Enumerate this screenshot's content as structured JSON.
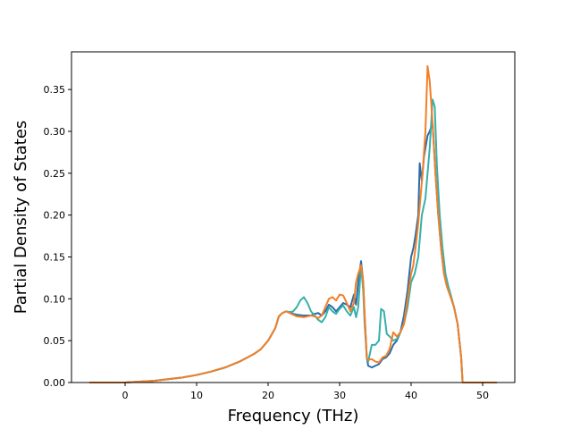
{
  "chart_data": {
    "type": "line",
    "title": "",
    "xlabel": "Frequency (THz)",
    "ylabel": "Partial Density of States",
    "xlim": [
      -7.5,
      54.5
    ],
    "ylim": [
      0.0,
      0.395
    ],
    "xticks": [
      0,
      10,
      20,
      30,
      40,
      50
    ],
    "xtick_labels": [
      "0",
      "10",
      "20",
      "30",
      "40",
      "50"
    ],
    "yticks": [
      0.0,
      0.05,
      0.1,
      0.15,
      0.2,
      0.25,
      0.3,
      0.35
    ],
    "ytick_labels": [
      "0.00",
      "0.05",
      "0.10",
      "0.15",
      "0.20",
      "0.25",
      "0.30",
      "0.35"
    ],
    "grid": false,
    "legend": "none",
    "series": [
      {
        "color": "#2b6ca8",
        "points": [
          [
            -5,
            0
          ],
          [
            0,
            0
          ],
          [
            2,
            0.001
          ],
          [
            4,
            0.002
          ],
          [
            6,
            0.004
          ],
          [
            8,
            0.006
          ],
          [
            10,
            0.009
          ],
          [
            12,
            0.013
          ],
          [
            14,
            0.018
          ],
          [
            16,
            0.025
          ],
          [
            18,
            0.034
          ],
          [
            19,
            0.04
          ],
          [
            20,
            0.05
          ],
          [
            21,
            0.065
          ],
          [
            21.5,
            0.079
          ],
          [
            22,
            0.083
          ],
          [
            22.5,
            0.085
          ],
          [
            23,
            0.084
          ],
          [
            23.5,
            0.082
          ],
          [
            24,
            0.081
          ],
          [
            25,
            0.08
          ],
          [
            26,
            0.08
          ],
          [
            26.5,
            0.082
          ],
          [
            27,
            0.083
          ],
          [
            27.5,
            0.08
          ],
          [
            28,
            0.085
          ],
          [
            28.5,
            0.093
          ],
          [
            29,
            0.09
          ],
          [
            29.5,
            0.085
          ],
          [
            30,
            0.09
          ],
          [
            30.5,
            0.095
          ],
          [
            31,
            0.093
          ],
          [
            31.5,
            0.09
          ],
          [
            32,
            0.105
          ],
          [
            32.3,
            0.093
          ],
          [
            32.6,
            0.12
          ],
          [
            33,
            0.145
          ],
          [
            33.3,
            0.12
          ],
          [
            33.5,
            0.08
          ],
          [
            33.8,
            0.03
          ],
          [
            34,
            0.02
          ],
          [
            34.5,
            0.018
          ],
          [
            35,
            0.02
          ],
          [
            35.5,
            0.022
          ],
          [
            36,
            0.028
          ],
          [
            36.5,
            0.03
          ],
          [
            37,
            0.035
          ],
          [
            37.5,
            0.045
          ],
          [
            38,
            0.05
          ],
          [
            38.5,
            0.06
          ],
          [
            39,
            0.08
          ],
          [
            39.5,
            0.11
          ],
          [
            40,
            0.15
          ],
          [
            40.3,
            0.16
          ],
          [
            40.6,
            0.175
          ],
          [
            41,
            0.2
          ],
          [
            41.2,
            0.262
          ],
          [
            41.5,
            0.24
          ],
          [
            41.8,
            0.27
          ],
          [
            42,
            0.28
          ],
          [
            42.3,
            0.295
          ],
          [
            42.6,
            0.3
          ],
          [
            43,
            0.31
          ],
          [
            43.4,
            0.25
          ],
          [
            43.8,
            0.2
          ],
          [
            44.2,
            0.16
          ],
          [
            44.6,
            0.13
          ],
          [
            45,
            0.115
          ],
          [
            45.5,
            0.103
          ],
          [
            46,
            0.09
          ],
          [
            46.5,
            0.07
          ],
          [
            47,
            0.03
          ],
          [
            47.2,
            0
          ],
          [
            50,
            0
          ],
          [
            52,
            0
          ]
        ]
      },
      {
        "color": "#35b0ab",
        "points": [
          [
            -5,
            0
          ],
          [
            0,
            0
          ],
          [
            2,
            0.001
          ],
          [
            4,
            0.002
          ],
          [
            6,
            0.004
          ],
          [
            8,
            0.006
          ],
          [
            10,
            0.009
          ],
          [
            12,
            0.013
          ],
          [
            14,
            0.018
          ],
          [
            16,
            0.025
          ],
          [
            18,
            0.034
          ],
          [
            19,
            0.04
          ],
          [
            20,
            0.05
          ],
          [
            21,
            0.065
          ],
          [
            21.5,
            0.079
          ],
          [
            22,
            0.083
          ],
          [
            22.5,
            0.085
          ],
          [
            23,
            0.084
          ],
          [
            23.5,
            0.085
          ],
          [
            24,
            0.09
          ],
          [
            24.5,
            0.098
          ],
          [
            25,
            0.102
          ],
          [
            25.5,
            0.095
          ],
          [
            26,
            0.085
          ],
          [
            26.5,
            0.08
          ],
          [
            27,
            0.075
          ],
          [
            27.5,
            0.072
          ],
          [
            28,
            0.078
          ],
          [
            28.5,
            0.09
          ],
          [
            29,
            0.085
          ],
          [
            29.5,
            0.082
          ],
          [
            30,
            0.088
          ],
          [
            30.5,
            0.092
          ],
          [
            31,
            0.085
          ],
          [
            31.5,
            0.08
          ],
          [
            32,
            0.09
          ],
          [
            32.3,
            0.078
          ],
          [
            32.6,
            0.09
          ],
          [
            33,
            0.14
          ],
          [
            33.3,
            0.11
          ],
          [
            33.5,
            0.07
          ],
          [
            33.8,
            0.03
          ],
          [
            34,
            0.025
          ],
          [
            34.5,
            0.045
          ],
          [
            35,
            0.045
          ],
          [
            35.5,
            0.05
          ],
          [
            35.8,
            0.088
          ],
          [
            36.2,
            0.085
          ],
          [
            36.6,
            0.058
          ],
          [
            37,
            0.055
          ],
          [
            37.5,
            0.05
          ],
          [
            38,
            0.052
          ],
          [
            38.5,
            0.06
          ],
          [
            39,
            0.07
          ],
          [
            39.5,
            0.09
          ],
          [
            40,
            0.12
          ],
          [
            40.5,
            0.13
          ],
          [
            41,
            0.15
          ],
          [
            41.5,
            0.2
          ],
          [
            42,
            0.22
          ],
          [
            42.3,
            0.25
          ],
          [
            42.6,
            0.28
          ],
          [
            43,
            0.338
          ],
          [
            43.3,
            0.33
          ],
          [
            43.6,
            0.26
          ],
          [
            44,
            0.2
          ],
          [
            44.4,
            0.16
          ],
          [
            44.8,
            0.13
          ],
          [
            45.2,
            0.115
          ],
          [
            45.6,
            0.103
          ],
          [
            46,
            0.09
          ],
          [
            46.5,
            0.07
          ],
          [
            47,
            0.03
          ],
          [
            47.2,
            0
          ],
          [
            50,
            0
          ],
          [
            52,
            0
          ]
        ]
      },
      {
        "color": "#f47f27",
        "points": [
          [
            -5,
            0
          ],
          [
            0,
            0
          ],
          [
            2,
            0.001
          ],
          [
            4,
            0.002
          ],
          [
            6,
            0.004
          ],
          [
            8,
            0.006
          ],
          [
            10,
            0.009
          ],
          [
            12,
            0.013
          ],
          [
            14,
            0.018
          ],
          [
            16,
            0.025
          ],
          [
            18,
            0.034
          ],
          [
            19,
            0.04
          ],
          [
            20,
            0.05
          ],
          [
            21,
            0.065
          ],
          [
            21.5,
            0.079
          ],
          [
            22,
            0.083
          ],
          [
            22.5,
            0.085
          ],
          [
            23,
            0.083
          ],
          [
            23.5,
            0.081
          ],
          [
            24,
            0.079
          ],
          [
            25,
            0.078
          ],
          [
            26,
            0.08
          ],
          [
            26.5,
            0.079
          ],
          [
            27,
            0.077
          ],
          [
            27.5,
            0.08
          ],
          [
            28,
            0.09
          ],
          [
            28.5,
            0.1
          ],
          [
            29,
            0.102
          ],
          [
            29.5,
            0.098
          ],
          [
            30,
            0.105
          ],
          [
            30.5,
            0.104
          ],
          [
            31,
            0.095
          ],
          [
            31.5,
            0.085
          ],
          [
            32,
            0.095
          ],
          [
            32.3,
            0.12
          ],
          [
            32.6,
            0.13
          ],
          [
            33,
            0.14
          ],
          [
            33.3,
            0.12
          ],
          [
            33.5,
            0.08
          ],
          [
            33.8,
            0.03
          ],
          [
            34,
            0.027
          ],
          [
            34.5,
            0.028
          ],
          [
            35,
            0.025
          ],
          [
            35.5,
            0.024
          ],
          [
            36,
            0.03
          ],
          [
            36.5,
            0.032
          ],
          [
            37,
            0.04
          ],
          [
            37.5,
            0.06
          ],
          [
            38,
            0.055
          ],
          [
            38.5,
            0.06
          ],
          [
            39,
            0.07
          ],
          [
            39.5,
            0.1
          ],
          [
            40,
            0.13
          ],
          [
            40.3,
            0.14
          ],
          [
            40.6,
            0.16
          ],
          [
            41,
            0.19
          ],
          [
            41.3,
            0.22
          ],
          [
            41.6,
            0.25
          ],
          [
            42,
            0.3
          ],
          [
            42.3,
            0.378
          ],
          [
            42.6,
            0.36
          ],
          [
            43,
            0.31
          ],
          [
            43.4,
            0.25
          ],
          [
            43.8,
            0.2
          ],
          [
            44.2,
            0.16
          ],
          [
            44.6,
            0.13
          ],
          [
            45,
            0.115
          ],
          [
            45.5,
            0.103
          ],
          [
            46,
            0.09
          ],
          [
            46.5,
            0.07
          ],
          [
            47,
            0.03
          ],
          [
            47.2,
            0
          ],
          [
            50,
            0
          ],
          [
            52,
            0
          ]
        ]
      }
    ]
  }
}
